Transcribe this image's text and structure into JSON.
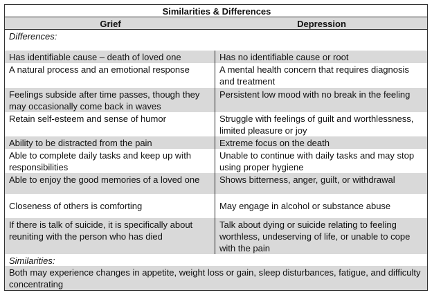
{
  "title": "Similarities & Differences",
  "headers": {
    "left": "Grief",
    "right": "Depression"
  },
  "differences_label": "Differences:",
  "rows": [
    {
      "left": "Has identifiable cause – death of loved one",
      "right": "Has no identifiable cause or root",
      "shaded": true
    },
    {
      "left": "A natural process and an emotional response",
      "right": "A mental health concern that requires diagnosis and treatment",
      "shaded": false
    },
    {
      "left": "Feelings subside after time passes, though they may occasionally come back in waves",
      "right": "Persistent low mood with no break in the feeling",
      "shaded": true
    },
    {
      "left": "Retain self-esteem and sense of humor",
      "right": "Struggle with feelings of guilt and worthlessness, limited pleasure or joy",
      "shaded": false
    },
    {
      "left": "Ability to be distracted from the pain",
      "right": "Extreme focus on the death",
      "shaded": true
    },
    {
      "left": "Able to complete daily tasks and keep up with responsibilities",
      "right": "Unable to continue with daily tasks and may stop using proper hygiene",
      "shaded": false
    },
    {
      "left": "Able to enjoy the good memories of a loved one",
      "right": "Shows bitterness, anger, guilt, or withdrawal",
      "shaded": true
    },
    {
      "left": "Closeness of others is comforting",
      "right": "May engage in alcohol or substance abuse",
      "shaded": false
    },
    {
      "left": "If there is talk of suicide, it is specifically about reuniting with the person who has died",
      "right": "Talk about dying or suicide relating to feeling worthless, undeserving of life, or unable to cope with the pain",
      "shaded": true
    }
  ],
  "similarities_label": "Similarities:",
  "similarities_text": "Both may experience changes in appetite, weight loss or gain, sleep disturbances, fatigue, and difficulty concentrating"
}
